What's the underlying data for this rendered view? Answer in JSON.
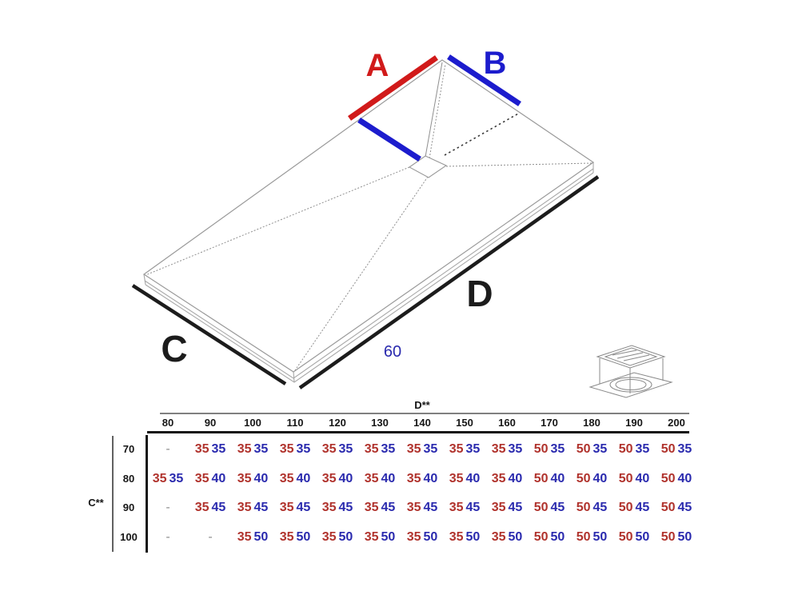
{
  "diagram": {
    "label_a": "A",
    "label_b": "B",
    "label_c": "C",
    "label_d": "D",
    "dim_60": "60",
    "colors": {
      "measure_red": "#d11a1a",
      "measure_blue": "#1c1ccd",
      "edge_black": "#1c1c1c",
      "outline_gray": "#9a9a9a",
      "table_red": "#b0322c",
      "table_blue": "#2a2aae"
    },
    "icons": {
      "drain": "drain-icon"
    }
  },
  "table": {
    "col_axis_label": "D**",
    "row_axis_label": "C**",
    "columns": [
      "80",
      "90",
      "100",
      "110",
      "120",
      "130",
      "140",
      "150",
      "160",
      "170",
      "180",
      "190",
      "200"
    ],
    "rows": [
      {
        "label": "70",
        "cells": [
          "-",
          "35 35",
          "35 35",
          "35 35",
          "35 35",
          "35 35",
          "35 35",
          "35 35",
          "35 35",
          "50 35",
          "50 35",
          "50 35",
          "50 35"
        ]
      },
      {
        "label": "80",
        "cells": [
          "35 35",
          "35 40",
          "35 40",
          "35 40",
          "35 40",
          "35 40",
          "35 40",
          "35 40",
          "35 40",
          "50 40",
          "50 40",
          "50 40",
          "50 40"
        ]
      },
      {
        "label": "90",
        "cells": [
          "-",
          "35 45",
          "35 45",
          "35 45",
          "35 45",
          "35 45",
          "35 45",
          "35 45",
          "35 45",
          "50 45",
          "50 45",
          "50 45",
          "50 45"
        ]
      },
      {
        "label": "100",
        "cells": [
          "-",
          "-",
          "35 50",
          "35 50",
          "35 50",
          "35 50",
          "35 50",
          "35 50",
          "35 50",
          "50 50",
          "50 50",
          "50 50",
          "50 50"
        ]
      }
    ]
  }
}
